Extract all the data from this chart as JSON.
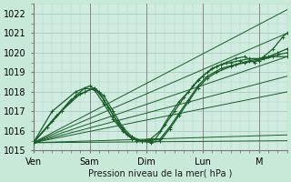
{
  "title": "",
  "xlabel": "Pression niveau de la mer( hPa )",
  "ylabel": "",
  "bg_color": "#c8e8d8",
  "plot_bg_color": "#d0ece0",
  "grid_color": "#a8ccc0",
  "line_color": "#1a5c2a",
  "ylim": [
    1015.0,
    1022.5
  ],
  "xlim": [
    0,
    108
  ],
  "yticks": [
    1015,
    1016,
    1017,
    1018,
    1019,
    1020,
    1021,
    1022
  ],
  "xtick_positions": [
    0,
    24,
    48,
    72,
    96
  ],
  "xtick_labels": [
    "Ven",
    "Sam",
    "Dim",
    "Lun",
    "M"
  ],
  "straight_lines": [
    [
      1015.4,
      1022.2
    ],
    [
      1015.4,
      1021.0
    ],
    [
      1015.4,
      1019.8
    ],
    [
      1015.4,
      1018.8
    ],
    [
      1015.4,
      1018.0
    ],
    [
      1015.4,
      1015.8
    ],
    [
      1015.4,
      1015.5
    ]
  ],
  "wavy1_x": [
    0,
    6,
    12,
    18,
    22,
    26,
    30,
    34,
    38,
    42,
    46,
    50,
    54,
    58,
    62,
    66,
    70,
    74,
    78,
    82,
    86,
    90,
    94,
    98,
    102,
    106,
    108
  ],
  "wavy1_y": [
    1015.4,
    1016.2,
    1017.0,
    1017.8,
    1018.2,
    1018.1,
    1017.4,
    1016.6,
    1016.0,
    1015.6,
    1015.5,
    1015.6,
    1016.0,
    1016.8,
    1017.5,
    1018.0,
    1018.6,
    1019.0,
    1019.3,
    1019.5,
    1019.7,
    1019.8,
    1019.5,
    1019.8,
    1020.2,
    1020.8,
    1021.0
  ],
  "wavy2_x": [
    0,
    8,
    16,
    22,
    26,
    30,
    34,
    38,
    42,
    46,
    50,
    54,
    58,
    62,
    66,
    70,
    74,
    78,
    84,
    90,
    96,
    102,
    108
  ],
  "wavy2_y": [
    1015.4,
    1016.5,
    1017.6,
    1018.0,
    1018.2,
    1017.8,
    1017.0,
    1016.2,
    1015.7,
    1015.5,
    1015.4,
    1015.5,
    1016.1,
    1016.8,
    1017.5,
    1018.2,
    1018.7,
    1019.0,
    1019.3,
    1019.5,
    1019.6,
    1019.8,
    1019.8
  ],
  "wavy3_x": [
    0,
    10,
    20,
    26,
    30,
    34,
    38,
    42,
    46,
    50,
    54,
    58,
    62,
    66,
    70,
    74,
    80,
    86,
    92,
    98,
    104,
    108
  ],
  "wavy3_y": [
    1015.4,
    1016.8,
    1017.9,
    1018.2,
    1017.6,
    1016.8,
    1016.1,
    1015.6,
    1015.5,
    1015.5,
    1015.6,
    1016.2,
    1016.9,
    1017.6,
    1018.3,
    1018.8,
    1019.2,
    1019.4,
    1019.6,
    1019.7,
    1019.9,
    1020.0
  ],
  "wavy4_x": [
    0,
    8,
    18,
    24,
    28,
    32,
    36,
    40,
    44,
    48,
    52,
    56,
    60,
    64,
    68,
    72,
    76,
    80,
    84,
    88,
    92,
    96,
    100,
    104,
    108
  ],
  "wavy4_y": [
    1015.4,
    1017.0,
    1018.0,
    1018.3,
    1018.0,
    1017.2,
    1016.4,
    1015.8,
    1015.5,
    1015.5,
    1015.6,
    1016.3,
    1017.0,
    1017.7,
    1018.3,
    1018.8,
    1019.2,
    1019.4,
    1019.5,
    1019.6,
    1019.7,
    1019.7,
    1019.8,
    1020.0,
    1020.2
  ]
}
